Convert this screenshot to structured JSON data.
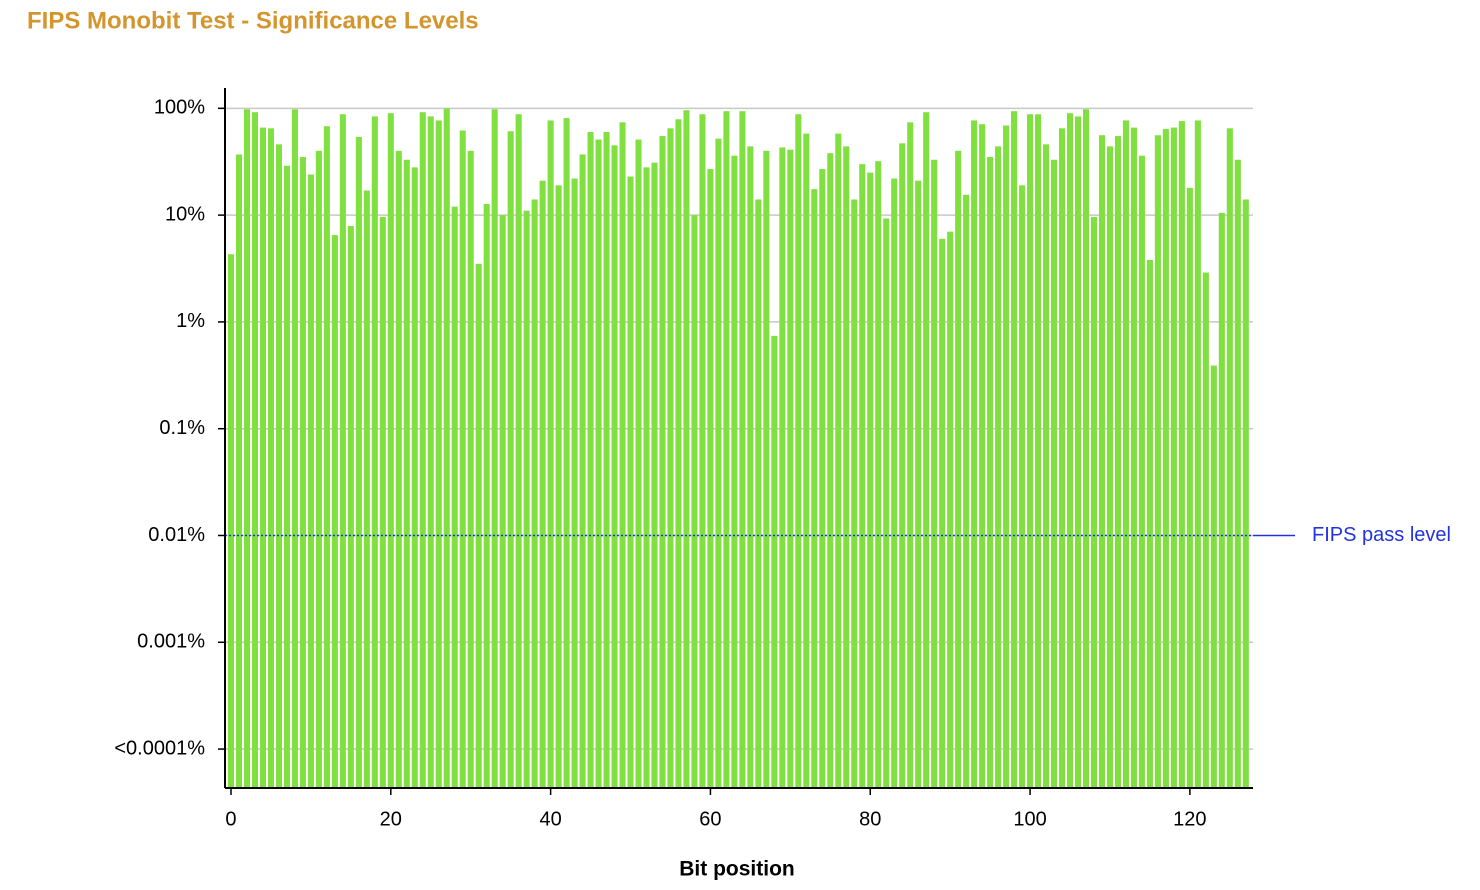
{
  "chart_data": {
    "type": "bar",
    "title": "FIPS Monobit Test - Significance Levels",
    "xlabel": "Bit position",
    "x": [
      0,
      1,
      2,
      3,
      4,
      5,
      6,
      7,
      8,
      9,
      10,
      11,
      12,
      13,
      14,
      15,
      16,
      17,
      18,
      19,
      20,
      21,
      22,
      23,
      24,
      25,
      26,
      27,
      28,
      29,
      30,
      31,
      32,
      33,
      34,
      35,
      36,
      37,
      38,
      39,
      40,
      41,
      42,
      43,
      44,
      45,
      46,
      47,
      48,
      49,
      50,
      51,
      52,
      53,
      54,
      55,
      56,
      57,
      58,
      59,
      60,
      61,
      62,
      63,
      64,
      65,
      66,
      67,
      68,
      69,
      70,
      71,
      72,
      73,
      74,
      75,
      76,
      77,
      78,
      79,
      80,
      81,
      82,
      83,
      84,
      85,
      86,
      87,
      88,
      89,
      90,
      91,
      92,
      93,
      94,
      95,
      96,
      97,
      98,
      99,
      100,
      101,
      102,
      103,
      104,
      105,
      106,
      107,
      108,
      109,
      110,
      111,
      112,
      113,
      114,
      115,
      116,
      117,
      118,
      119,
      120,
      121,
      122,
      123,
      124,
      125,
      126,
      127
    ],
    "values": [
      4.3,
      37,
      98,
      92,
      66,
      65,
      46,
      29,
      98,
      35,
      24,
      40,
      68,
      6.5,
      88,
      7.9,
      54,
      17,
      84,
      9.6,
      90,
      40,
      33,
      28,
      92,
      84,
      77,
      100,
      12,
      62,
      40,
      3.5,
      12.7,
      98,
      10,
      61,
      88,
      11,
      14,
      21,
      77,
      19,
      81,
      22,
      37,
      60,
      51,
      60,
      45,
      74,
      23,
      51,
      28,
      31,
      55,
      65,
      79,
      96,
      10,
      88,
      27,
      52,
      94,
      36,
      94,
      44,
      14,
      40,
      0.74,
      43,
      41,
      88,
      58,
      17.5,
      27,
      38,
      58,
      44,
      14,
      30,
      25,
      32,
      9.3,
      22,
      47,
      74,
      21,
      92,
      33,
      6,
      7,
      40,
      15.5,
      77,
      71,
      35,
      44,
      69,
      94,
      19,
      88,
      88,
      46,
      33,
      65,
      90,
      84,
      98,
      9.6,
      56,
      44,
      55,
      77,
      66,
      36,
      3.8,
      56,
      64,
      66,
      76,
      18,
      77,
      2.9,
      0.39,
      10.5,
      65,
      33,
      14
    ],
    "color": "#80e040",
    "log_scale": true,
    "xlim": [
      -0.75,
      127.9
    ],
    "xticks": [
      0,
      20,
      40,
      60,
      80,
      100,
      120
    ],
    "ylim": [
      4.32e-05,
      155
    ],
    "yticks": [
      {
        "value": 100,
        "label": "100%"
      },
      {
        "value": 10,
        "label": "10%"
      },
      {
        "value": 1,
        "label": "1%"
      },
      {
        "value": 0.1,
        "label": "0.1%"
      },
      {
        "value": 0.01,
        "label": "0.01%"
      },
      {
        "value": 0.001,
        "label": "0.001%"
      },
      {
        "value": 0.0001,
        "label": "<0.0001%"
      }
    ],
    "grid": true,
    "pass_level": {
      "value": 0.01,
      "label": "FIPS pass level",
      "color": "#2233dd"
    }
  }
}
